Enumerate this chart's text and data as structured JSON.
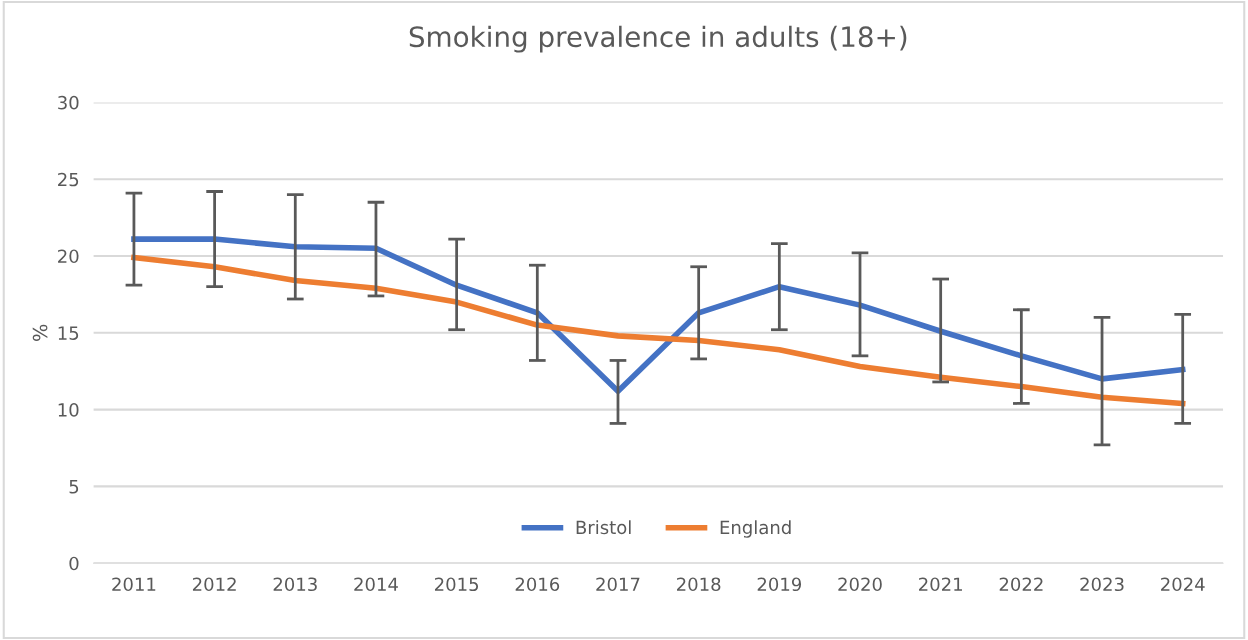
{
  "chart_data": {
    "type": "line",
    "title": "Smoking prevalence in adults (18+)",
    "ylabel": "%",
    "categories": [
      "2011",
      "2012",
      "2013",
      "2014",
      "2015",
      "2016",
      "2017",
      "2018",
      "2019",
      "2020",
      "2021",
      "2022",
      "2023",
      "2024"
    ],
    "series": [
      {
        "name": "Bristol",
        "color": "#4472c4",
        "values": [
          21.1,
          21.1,
          20.6,
          20.5,
          18.1,
          16.3,
          11.2,
          16.3,
          18.0,
          16.8,
          15.1,
          13.5,
          12.0,
          12.6
        ],
        "errors": [
          [
            18.1,
            24.1
          ],
          [
            18.0,
            24.2
          ],
          [
            17.2,
            24.0
          ],
          [
            17.4,
            23.5
          ],
          [
            15.2,
            21.1
          ],
          [
            13.2,
            19.4
          ],
          [
            9.1,
            13.2
          ],
          [
            13.3,
            19.3
          ],
          [
            15.2,
            20.8
          ],
          [
            13.5,
            20.2
          ],
          [
            11.8,
            18.5
          ],
          [
            10.4,
            16.5
          ],
          [
            7.7,
            16.0
          ],
          [
            9.1,
            16.2
          ]
        ]
      },
      {
        "name": "England",
        "color": "#ed7d31",
        "values": [
          19.9,
          19.3,
          18.4,
          17.9,
          17.0,
          15.5,
          14.8,
          14.5,
          13.9,
          12.8,
          12.1,
          11.5,
          10.8,
          10.4
        ]
      }
    ],
    "ylim": [
      0,
      30
    ],
    "yticks": [
      0,
      5,
      10,
      15,
      20,
      25,
      30
    ],
    "grid": "y",
    "legend": "bottom",
    "marker": "none",
    "line_style": "solid"
  }
}
